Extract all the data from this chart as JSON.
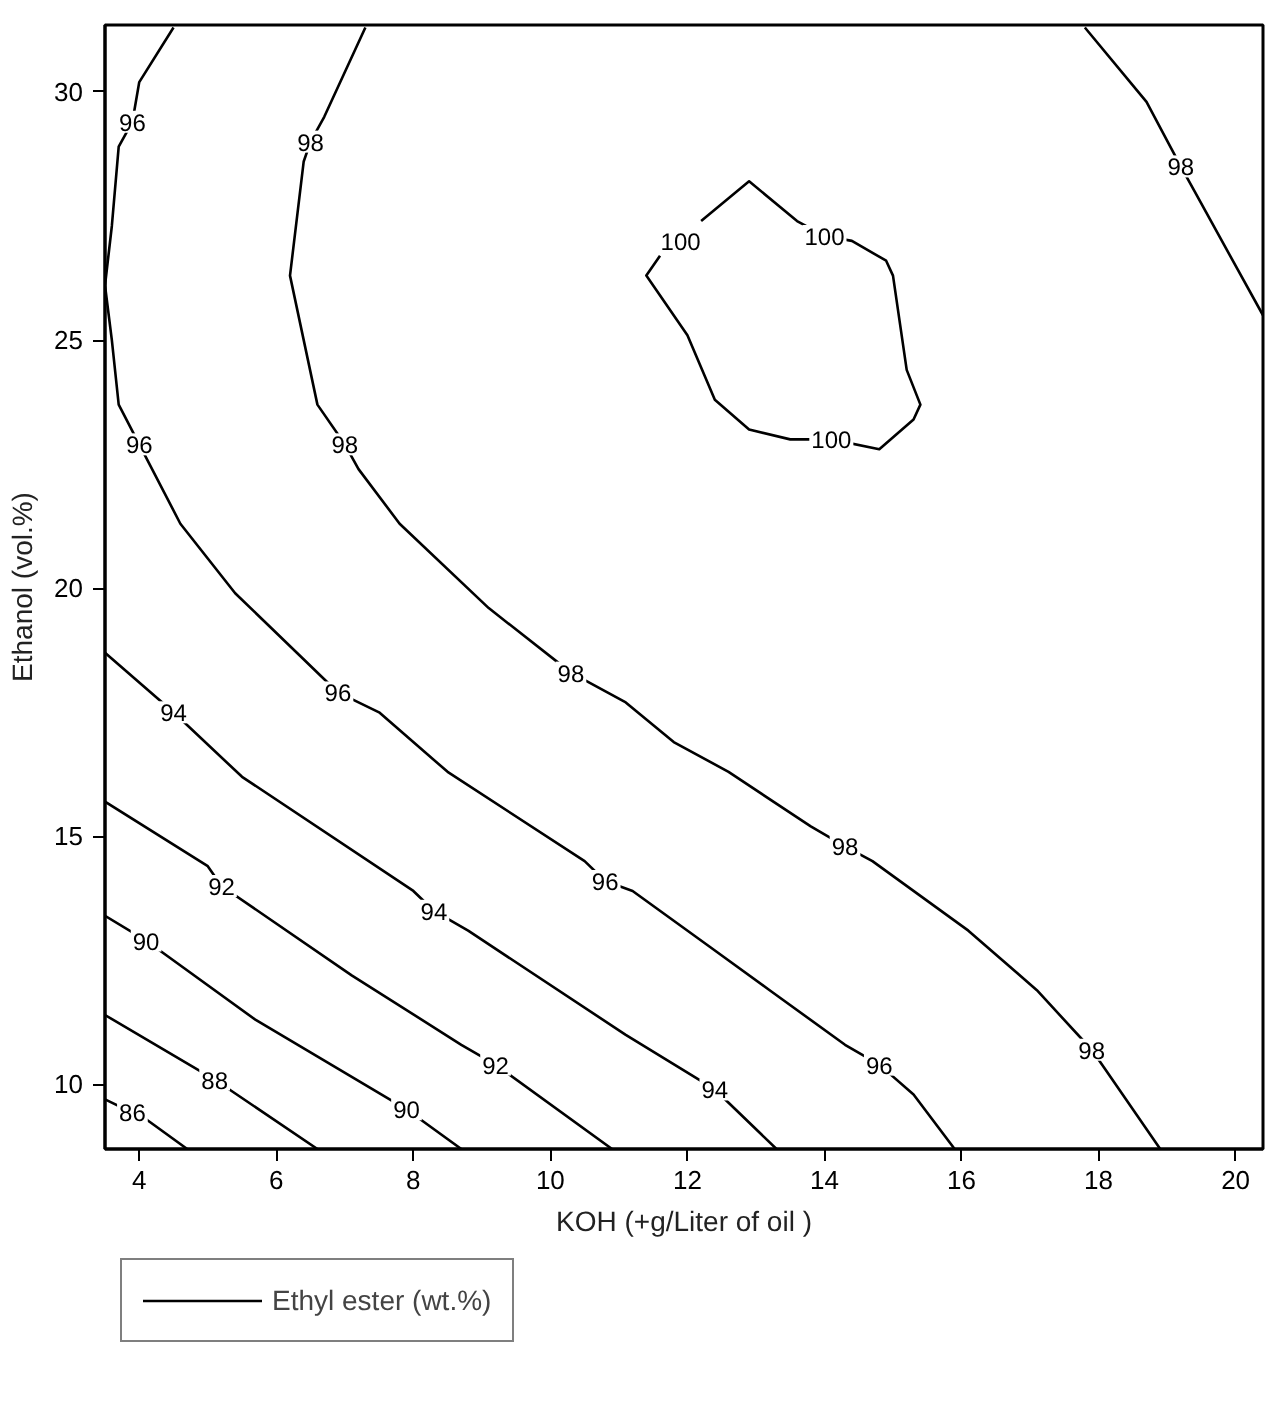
{
  "chart_data": {
    "type": "line",
    "xlabel": "KOH (+g/Liter of oil )",
    "ylabel": "Ethanol (vol.%)",
    "legend": "bottom left",
    "grid": false,
    "marker": "none",
    "line_style": "solid",
    "xlim": [
      3.5,
      20.4
    ],
    "ylim": [
      8.7,
      31.35
    ],
    "xticks": [
      4,
      6,
      8,
      10,
      12,
      14,
      16,
      18,
      20
    ],
    "yticks": [
      10,
      15,
      20,
      25,
      30
    ],
    "series": [
      {
        "name": "Ethyl ester (wt.%)",
        "color": "#000000",
        "x": [
          3.5,
          4.1,
          4.7
        ],
        "values": [
          9.7,
          9.3,
          8.7
        ]
      },
      {
        "color": "#000000",
        "x": [
          3.5,
          5.1,
          6.6
        ],
        "values": [
          11.4,
          10.1,
          8.7
        ]
      },
      {
        "color": "#000000",
        "x": [
          3.5,
          4.1,
          4.4,
          5.7,
          7.9,
          8.1,
          8.7
        ],
        "values": [
          13.4,
          12.9,
          12.6,
          11.3,
          9.5,
          9.3,
          8.7
        ]
      },
      {
        "color": "#000000",
        "x": [
          3.5,
          5.0,
          5.2,
          7.1,
          8.7,
          9.2,
          10.9
        ],
        "values": [
          15.7,
          14.4,
          14.0,
          12.2,
          10.8,
          10.4,
          8.7
        ]
      },
      {
        "color": "#000000",
        "x": [
          3.5,
          4.5,
          5.5,
          8.0,
          8.3,
          8.8,
          11.1,
          12.4,
          13.3
        ],
        "values": [
          18.7,
          17.5,
          16.2,
          13.9,
          13.5,
          13.1,
          11.0,
          9.9,
          8.7
        ]
      },
      {
        "color": "#000000",
        "x": [
          4.5,
          4.0,
          3.9,
          3.7,
          3.6,
          3.5,
          3.6,
          3.7,
          4.0,
          4.6,
          5.4,
          6.3,
          6.9,
          7.5,
          8.5,
          10.5,
          10.8,
          11.2,
          12.3,
          13.2,
          14.3,
          14.8,
          15.3,
          15.9
        ],
        "values": [
          31.3,
          30.2,
          29.4,
          28.9,
          27.3,
          26.1,
          25.0,
          23.7,
          22.9,
          21.3,
          19.9,
          18.7,
          17.9,
          17.5,
          16.3,
          14.5,
          14.1,
          13.9,
          12.8,
          11.9,
          10.8,
          10.4,
          9.8,
          8.7
        ]
      },
      {
        "color": "#000000",
        "x": [
          7.3,
          6.7,
          6.5,
          6.4,
          6.2,
          6.6,
          7.0,
          7.2,
          7.8,
          9.1,
          10.3,
          11.1,
          11.8,
          12.6,
          13.8,
          14.3,
          14.7,
          16.1,
          17.1,
          17.9,
          18.1,
          18.9
        ],
        "values": [
          31.3,
          29.5,
          29.0,
          28.6,
          26.3,
          23.7,
          22.9,
          22.4,
          21.3,
          19.6,
          18.3,
          17.7,
          16.9,
          16.3,
          15.2,
          14.8,
          14.5,
          13.1,
          11.9,
          10.7,
          10.3,
          8.7
        ]
      },
      {
        "color": "#000000",
        "x": [
          17.8,
          18.7,
          19.2,
          19.4,
          20.4
        ],
        "values": [
          31.3,
          29.8,
          28.5,
          28.0,
          25.5
        ]
      },
      {
        "color": "#000000",
        "x": [
          11.6,
          11.4,
          12.0,
          12.4,
          12.9,
          13.5,
          14.1,
          14.8,
          15.3,
          15.4,
          15.2,
          15.0,
          14.9,
          14.4,
          14.0,
          13.6,
          12.9,
          12.2
        ],
        "values": [
          26.7,
          26.3,
          25.1,
          23.8,
          23.2,
          23.0,
          23.0,
          22.8,
          23.4,
          23.7,
          24.4,
          26.3,
          26.6,
          27.0,
          27.1,
          27.4,
          28.2,
          27.4
        ]
      }
    ],
    "annotations": [
      {
        "text": "86",
        "x": 3.9,
        "y": 9.45
      },
      {
        "text": "88",
        "x": 5.1,
        "y": 10.1
      },
      {
        "text": "90",
        "x": 4.1,
        "y": 12.9
      },
      {
        "text": "90",
        "x": 7.9,
        "y": 9.5
      },
      {
        "text": "92",
        "x": 5.2,
        "y": 14.0
      },
      {
        "text": "92",
        "x": 9.2,
        "y": 10.4
      },
      {
        "text": "94",
        "x": 4.5,
        "y": 17.5
      },
      {
        "text": "94",
        "x": 8.3,
        "y": 13.5
      },
      {
        "text": "94",
        "x": 12.4,
        "y": 9.9
      },
      {
        "text": "96",
        "x": 3.9,
        "y": 29.4
      },
      {
        "text": "96",
        "x": 4.0,
        "y": 22.9
      },
      {
        "text": "96",
        "x": 6.9,
        "y": 17.9
      },
      {
        "text": "96",
        "x": 10.8,
        "y": 14.1
      },
      {
        "text": "96",
        "x": 14.8,
        "y": 10.4
      },
      {
        "text": "98",
        "x": 6.5,
        "y": 29.0
      },
      {
        "text": "98",
        "x": 7.0,
        "y": 22.9
      },
      {
        "text": "98",
        "x": 10.3,
        "y": 18.3
      },
      {
        "text": "98",
        "x": 14.3,
        "y": 14.8
      },
      {
        "text": "98",
        "x": 17.9,
        "y": 10.7
      },
      {
        "text": "98",
        "x": 19.2,
        "y": 28.5
      },
      {
        "text": "100",
        "x": 11.9,
        "y": 27.0
      },
      {
        "text": "100",
        "x": 14.0,
        "y": 27.1
      },
      {
        "text": "100",
        "x": 14.1,
        "y": 23.0
      }
    ]
  }
}
